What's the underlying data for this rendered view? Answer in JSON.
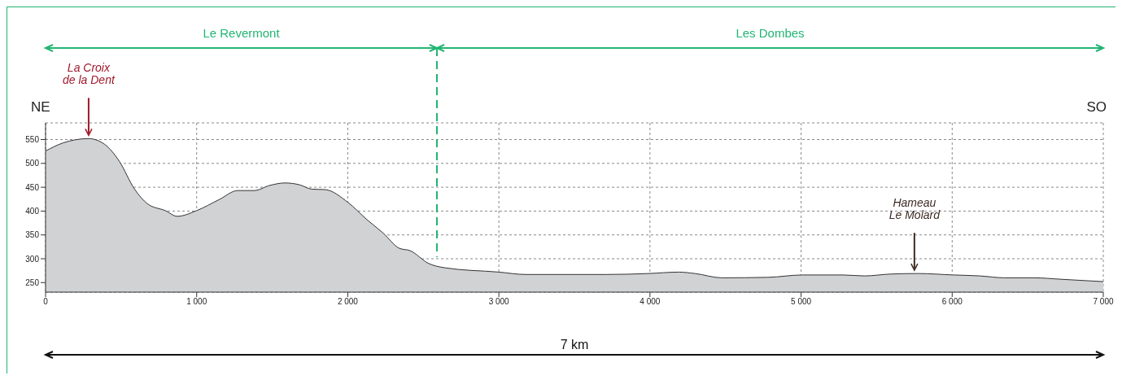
{
  "chart_data": {
    "type": "area",
    "x": [
      0,
      116,
      285,
      391,
      489,
      587,
      676,
      792,
      872,
      1000,
      1148,
      1272,
      1379,
      1486,
      1584,
      1682,
      1762,
      1851,
      2002,
      2127,
      2234,
      2341,
      2412,
      2536,
      2643,
      3000,
      3177,
      3711,
      3990,
      4191,
      4298,
      4476,
      4780,
      5010,
      5277,
      5419,
      5597,
      5775,
      6006,
      6184,
      6345,
      6542,
      6720,
      7000
    ],
    "values": [
      526,
      543,
      552,
      540,
      504,
      447,
      415,
      401,
      389,
      401,
      424,
      443,
      443,
      454,
      459,
      455,
      446,
      445,
      418,
      382,
      354,
      322,
      317,
      290,
      281,
      272,
      267,
      267,
      269,
      272,
      269,
      260,
      261,
      266,
      266,
      264,
      268,
      269,
      266,
      264,
      260,
      260,
      257,
      252
    ],
    "color": "#d1d2d4",
    "xlim": [
      0,
      7000
    ],
    "ylim": [
      230,
      585
    ],
    "xticks": [
      0,
      {
        "value": 1000,
        "label": "1 000"
      },
      {
        "value": 2000,
        "label": "2 000"
      },
      {
        "value": 3000,
        "label": "3 000"
      },
      {
        "value": 4000,
        "label": "4 000"
      },
      {
        "value": 5000,
        "label": "5 000"
      },
      {
        "value": 6000,
        "label": "6 000"
      },
      {
        "value": 7000,
        "label": "7 000"
      }
    ],
    "yticks": [
      250,
      300,
      350,
      400,
      450,
      500,
      550
    ],
    "grid": true,
    "ref_lines": [
      {
        "axis": "x",
        "value": 2590,
        "color": "#22b573",
        "line_style": "dashed"
      }
    ],
    "annotations": [
      "Le Revermont",
      "Les Dombes",
      {
        "text": "La Croix\nde la Dent",
        "x": 285,
        "y": 552
      },
      {
        "text": "Hameau\nLe Molard",
        "x": 5750,
        "y": 269
      },
      "NE",
      "SO",
      "7 km"
    ]
  }
}
